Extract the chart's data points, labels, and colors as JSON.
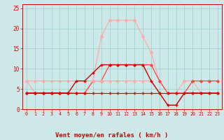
{
  "hours": [
    0,
    1,
    2,
    3,
    4,
    5,
    6,
    7,
    8,
    9,
    10,
    11,
    12,
    13,
    14,
    15,
    16,
    17,
    18,
    19,
    20,
    21,
    22,
    23
  ],
  "line1_rafales": [
    7,
    4,
    4,
    4,
    4,
    4,
    4,
    4,
    7,
    18,
    22,
    22,
    22,
    22,
    18,
    14,
    7,
    4,
    4,
    7,
    7,
    4,
    4,
    4
  ],
  "line2_moyen": [
    4,
    4,
    4,
    4,
    4,
    4,
    7,
    7,
    9,
    11,
    11,
    11,
    11,
    11,
    11,
    7,
    4,
    1,
    1,
    4,
    4,
    4,
    4,
    4
  ],
  "line3_med": [
    4,
    4,
    4,
    4,
    4,
    4,
    4,
    4,
    7,
    7,
    11,
    11,
    11,
    11,
    11,
    11,
    7,
    4,
    4,
    4,
    7,
    7,
    7,
    7
  ],
  "line4_flat": [
    4,
    4,
    4,
    4,
    4,
    4,
    4,
    4,
    4,
    4,
    4,
    4,
    4,
    4,
    4,
    4,
    4,
    4,
    4,
    4,
    4,
    4,
    4,
    4
  ],
  "line5_high": [
    7,
    7,
    7,
    7,
    7,
    7,
    7,
    7,
    7,
    7,
    7,
    7,
    7,
    7,
    7,
    7,
    4,
    1,
    1,
    4,
    4,
    4,
    4,
    4
  ],
  "color_light": "#ffaaaa",
  "color_dark": "#cc0000",
  "color_mid": "#ff4444",
  "bg_color": "#cce8e8",
  "grid_color": "#99cccc",
  "xlabel": "Vent moyen/en rafales ( km/h )",
  "yticks": [
    0,
    5,
    10,
    15,
    20,
    25
  ],
  "ylim": [
    0,
    26
  ],
  "xlim": [
    -0.5,
    23.5
  ]
}
